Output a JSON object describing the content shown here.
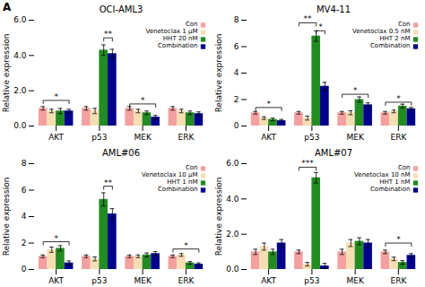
{
  "title": "A",
  "chart_data": [
    {
      "type": "bar",
      "title": "OCI-AML3",
      "y_label": "Relative expression",
      "categories": [
        "AKT",
        "p53",
        "MEK",
        "ERK"
      ],
      "series": [
        {
          "name": "Con",
          "color": "#F4A0A0",
          "values": [
            1.0,
            1.0,
            1.0,
            1.0
          ],
          "errors": [
            0.1,
            0.1,
            0.1,
            0.1
          ]
        },
        {
          "name": "Venetoclax 1 μM",
          "color": "#F5DEB3",
          "values": [
            0.85,
            0.85,
            0.85,
            0.85
          ],
          "errors": [
            0.1,
            0.15,
            0.1,
            0.1
          ]
        },
        {
          "name": "HHT 20 nM",
          "color": "#228B22",
          "values": [
            0.85,
            4.3,
            0.75,
            0.75
          ],
          "errors": [
            0.15,
            0.3,
            0.1,
            0.1
          ]
        },
        {
          "name": "Combination",
          "color": "#00008B",
          "values": [
            0.85,
            4.1,
            0.5,
            0.7
          ],
          "errors": [
            0.1,
            0.25,
            0.1,
            0.1
          ]
        }
      ],
      "ylim": [
        0,
        6
      ],
      "yticks": [
        0,
        2,
        4,
        6
      ],
      "grid": false,
      "legend": "upper right",
      "annotations": [
        {
          "text": "*",
          "category": "AKT",
          "from": "Con",
          "to": "Combination",
          "y": 1.45
        },
        {
          "text": "**",
          "category": "p53",
          "from": "HHT 20 nM",
          "to": "Combination",
          "y": 5.0
        },
        {
          "text": "*",
          "category": "MEK",
          "from": "Con",
          "to": "Combination",
          "y": 1.25
        }
      ]
    },
    {
      "type": "bar",
      "title": "MV4-11",
      "y_label": "Relative expression",
      "categories": [
        "AKT",
        "p53",
        "MEK",
        "ERK"
      ],
      "series": [
        {
          "name": "Con",
          "color": "#F4A0A0",
          "values": [
            1.0,
            1.0,
            1.0,
            1.0
          ],
          "errors": [
            0.1,
            0.1,
            0.1,
            0.1
          ]
        },
        {
          "name": "Venetoclax 0.5 nM",
          "color": "#F5DEB3",
          "values": [
            0.6,
            0.6,
            1.0,
            1.1
          ],
          "errors": [
            0.1,
            0.15,
            0.15,
            0.1
          ]
        },
        {
          "name": "HHT 2 nM",
          "color": "#228B22",
          "values": [
            0.5,
            6.8,
            2.0,
            1.5
          ],
          "errors": [
            0.1,
            0.4,
            0.2,
            0.15
          ]
        },
        {
          "name": "Combination",
          "color": "#00008B",
          "values": [
            0.4,
            3.0,
            1.6,
            1.3
          ],
          "errors": [
            0.1,
            0.3,
            0.15,
            0.1
          ]
        }
      ],
      "ylim": [
        0,
        8
      ],
      "yticks": [
        0,
        2,
        4,
        6,
        8
      ],
      "grid": false,
      "legend": "upper right",
      "annotations": [
        {
          "text": "*",
          "category": "AKT",
          "from": "Con",
          "to": "Combination",
          "y": 1.4
        },
        {
          "text": "**",
          "category": "p53",
          "from": "Con",
          "to": "HHT 2 nM",
          "y": 7.8
        },
        {
          "text": "*",
          "category": "p53",
          "from": "HHT 2 nM",
          "to": "Combination",
          "y": 7.2
        },
        {
          "text": "*",
          "category": "MEK",
          "from": "Con",
          "to": "Combination",
          "y": 2.4
        },
        {
          "text": "*",
          "category": "ERK",
          "from": "Con",
          "to": "Combination",
          "y": 1.8
        }
      ]
    },
    {
      "type": "bar",
      "title": "AML#06",
      "y_label": "Relative expression",
      "categories": [
        "AKT",
        "p53",
        "MEK",
        "ERK"
      ],
      "series": [
        {
          "name": "Con",
          "color": "#F4A0A0",
          "values": [
            1.0,
            1.0,
            1.0,
            1.0
          ],
          "errors": [
            0.1,
            0.1,
            0.1,
            0.1
          ]
        },
        {
          "name": "Venetoclax 10 μM",
          "color": "#F5DEB3",
          "values": [
            1.5,
            0.8,
            1.0,
            1.1
          ],
          "errors": [
            0.2,
            0.15,
            0.1,
            0.1
          ]
        },
        {
          "name": "HHT 1 nM",
          "color": "#228B22",
          "values": [
            1.6,
            5.3,
            1.1,
            0.5
          ],
          "errors": [
            0.2,
            0.5,
            0.15,
            0.1
          ]
        },
        {
          "name": "Combination",
          "color": "#00008B",
          "values": [
            0.5,
            4.2,
            1.2,
            0.4
          ],
          "errors": [
            0.15,
            0.4,
            0.15,
            0.1
          ]
        }
      ],
      "ylim": [
        0,
        8
      ],
      "yticks": [
        0,
        2,
        4,
        6,
        8
      ],
      "grid": false,
      "legend": "upper right",
      "annotations": [
        {
          "text": "*",
          "category": "AKT",
          "from": "Con",
          "to": "Combination",
          "y": 2.1
        },
        {
          "text": "**",
          "category": "p53",
          "from": "HHT 1 nM",
          "to": "Combination",
          "y": 6.3
        },
        {
          "text": "*",
          "category": "ERK",
          "from": "Con",
          "to": "Combination",
          "y": 1.55
        }
      ]
    },
    {
      "type": "bar",
      "title": "AML#07",
      "y_label": "Relative expression",
      "categories": [
        "AKT",
        "p53",
        "MEK",
        "ERK"
      ],
      "series": [
        {
          "name": "Con",
          "color": "#F4A0A0",
          "values": [
            1.0,
            1.0,
            1.0,
            1.0
          ],
          "errors": [
            0.15,
            0.1,
            0.15,
            0.1
          ]
        },
        {
          "name": "Venetoclax 10 nM",
          "color": "#F5DEB3",
          "values": [
            1.3,
            0.3,
            1.5,
            0.6
          ],
          "errors": [
            0.2,
            0.1,
            0.2,
            0.1
          ]
        },
        {
          "name": "HHT 1 nM",
          "color": "#228B22",
          "values": [
            1.0,
            5.2,
            1.6,
            0.4
          ],
          "errors": [
            0.15,
            0.3,
            0.2,
            0.1
          ]
        },
        {
          "name": "Combination",
          "color": "#00008B",
          "values": [
            1.5,
            0.2,
            1.5,
            0.8
          ],
          "errors": [
            0.2,
            0.15,
            0.2,
            0.1
          ]
        }
      ],
      "ylim": [
        0,
        6
      ],
      "yticks": [
        0,
        2,
        4,
        6
      ],
      "grid": false,
      "legend": "upper right",
      "annotations": [
        {
          "text": "***",
          "category": "p53",
          "from": "Con",
          "to": "HHT 1 nM",
          "y": 5.8
        },
        {
          "text": "*",
          "category": "ERK",
          "from": "Con",
          "to": "Combination",
          "y": 1.5
        }
      ]
    }
  ]
}
